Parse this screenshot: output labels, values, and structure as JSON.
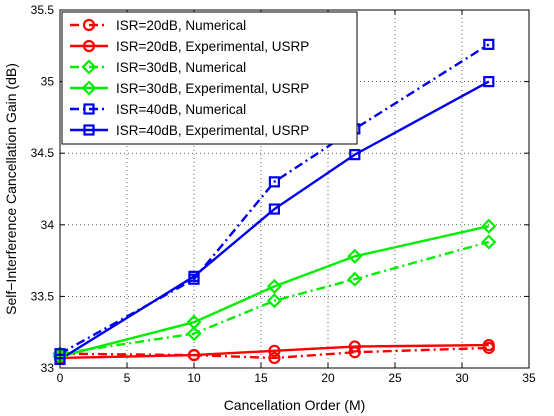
{
  "chart_data": {
    "type": "line",
    "title": "",
    "xlabel": "Cancellation Order (M)",
    "ylabel": "Self−Interference Cancellation Gain (dB)",
    "xlim": [
      0,
      35
    ],
    "ylim": [
      33,
      35.5
    ],
    "xticks": [
      0,
      5,
      10,
      15,
      20,
      25,
      30,
      35
    ],
    "xtick_labels": [
      "0",
      "5",
      "10",
      "15",
      "20",
      "25",
      "30",
      "35"
    ],
    "yticks": [
      33,
      33.5,
      34,
      34.5,
      35,
      35.5
    ],
    "ytick_labels": [
      "33",
      "33.5",
      "34",
      "34.5",
      "35",
      "35.5"
    ],
    "grid": true,
    "legend_position": "top-left",
    "series": [
      {
        "name": "ISR=20dB, Numerical",
        "color": "#ff0000",
        "dash": "dashdot",
        "marker": "circle",
        "x": [
          0,
          10,
          16,
          22,
          32
        ],
        "y": [
          33.1,
          33.09,
          33.07,
          33.11,
          33.14
        ]
      },
      {
        "name": "ISR=20dB, Experimental, USRP",
        "color": "#ff0000",
        "dash": "solid",
        "marker": "circle",
        "x": [
          0,
          10,
          16,
          22,
          32
        ],
        "y": [
          33.07,
          33.09,
          33.12,
          33.15,
          33.16
        ]
      },
      {
        "name": "ISR=30dB, Numerical",
        "color": "#00ee00",
        "dash": "dashdot",
        "marker": "diamond",
        "x": [
          0,
          10,
          16,
          22,
          32
        ],
        "y": [
          33.1,
          33.24,
          33.47,
          33.62,
          33.88
        ]
      },
      {
        "name": "ISR=30dB, Experimental, USRP",
        "color": "#00ee00",
        "dash": "solid",
        "marker": "diamond",
        "x": [
          0,
          10,
          16,
          22,
          32
        ],
        "y": [
          33.08,
          33.32,
          33.57,
          33.78,
          33.99
        ]
      },
      {
        "name": "ISR=40dB, Numerical",
        "color": "#0000ee",
        "dash": "dashdot",
        "marker": "square",
        "x": [
          0,
          10,
          16,
          22,
          32
        ],
        "y": [
          33.1,
          33.62,
          34.3,
          34.67,
          35.26
        ]
      },
      {
        "name": "ISR=40dB, Experimental, USRP",
        "color": "#0000ee",
        "dash": "solid",
        "marker": "square",
        "x": [
          0,
          10,
          16,
          22,
          32
        ],
        "y": [
          33.06,
          33.64,
          34.11,
          34.49,
          35.0
        ]
      }
    ]
  }
}
